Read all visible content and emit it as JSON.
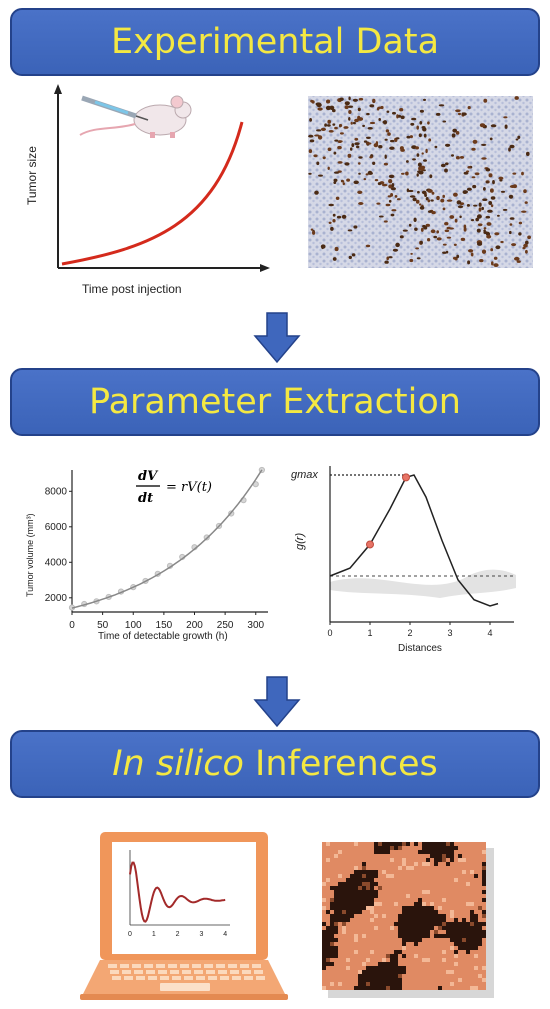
{
  "banners": {
    "experimental": "Experimental Data",
    "parameter": "Parameter Extraction",
    "insilico_italic": "In silico",
    "insilico_rest": " Inferences"
  },
  "colors": {
    "banner": "#3f67bd",
    "banner_text": "#f4e842",
    "arrow": "#3f67bd",
    "curve_red": "#d42a1c",
    "laptop": "#f0965a",
    "dots": "#e77466"
  },
  "panel1": {
    "ylabel": "Tumor size",
    "xlabel": "Time post injection"
  },
  "formula": {
    "num": "dV",
    "den": "dt",
    "rhs": "= rV(t)"
  },
  "chart_data": [
    {
      "type": "scatter",
      "title": "",
      "xlabel": "Time of detectable growth (h)",
      "ylabel": "Tumor volume (mm³)",
      "xlim": [
        0,
        320
      ],
      "ylim": [
        1200,
        9200
      ],
      "xticks": [
        0,
        50,
        100,
        150,
        200,
        250,
        300
      ],
      "yticks": [
        2000,
        4000,
        6000,
        8000
      ],
      "x": [
        0,
        20,
        40,
        60,
        80,
        100,
        120,
        140,
        160,
        180,
        200,
        220,
        240,
        260,
        280,
        300,
        310
      ],
      "y": [
        1450,
        1650,
        1800,
        2050,
        2350,
        2600,
        2950,
        3350,
        3800,
        4300,
        4850,
        5400,
        6050,
        6750,
        7500,
        8400,
        9200
      ],
      "fit": "exponential"
    },
    {
      "type": "line",
      "title": "",
      "xlabel": "Distances",
      "ylabel": "g(r)",
      "ymax_label": "gmax",
      "xlim": [
        0,
        4.6
      ],
      "xticks": [
        0,
        1,
        2,
        3,
        4
      ],
      "x": [
        0,
        0.5,
        1,
        1.5,
        1.9,
        2.1,
        2.4,
        2.8,
        3.2,
        3.6,
        4.0,
        4.2
      ],
      "y": [
        0.5,
        0.6,
        0.9,
        1.35,
        1.75,
        1.78,
        1.5,
        0.95,
        0.45,
        0.2,
        0.12,
        0.15
      ],
      "highlight_points": [
        {
          "x": 1,
          "y": 0.9
        },
        {
          "x": 1.9,
          "y": 1.75
        }
      ],
      "baseline": 0.5
    },
    {
      "type": "line",
      "title": "",
      "xticks": [
        0,
        1,
        2,
        3,
        4
      ],
      "x": [
        0,
        0.25,
        0.5,
        0.75,
        1,
        1.25,
        1.5,
        1.75,
        2,
        2.25,
        2.5,
        2.75,
        3,
        3.25,
        3.5,
        3.75,
        4
      ],
      "y": [
        0.5,
        1.3,
        0.2,
        0.9,
        0.3,
        0.7,
        0.35,
        0.6,
        0.4,
        0.55,
        0.42,
        0.52,
        0.45,
        0.5,
        0.47,
        0.49,
        0.48
      ]
    }
  ]
}
